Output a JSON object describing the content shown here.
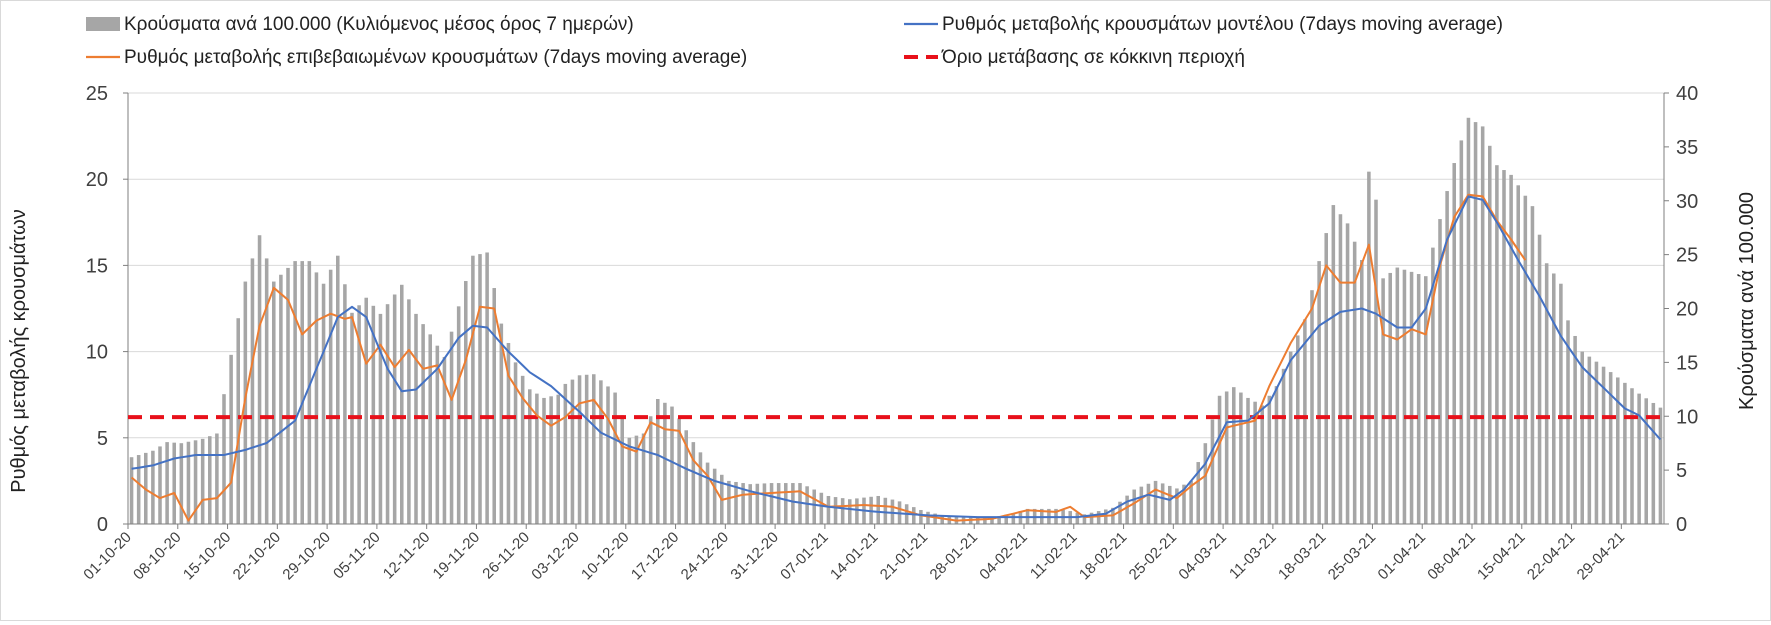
{
  "chart_data": {
    "type": "bar+line",
    "title": "",
    "legend": [
      {
        "key": "bars",
        "label": "Κρούσματα ανά 100.000 (Κυλιόμενος μέσος όρος 7 ημερών)",
        "color": "#a6a6a6"
      },
      {
        "key": "model",
        "label": "Ρυθμός μεταβολής κρουσμάτων μοντέλου (7days moving average)",
        "color": "#4472c4"
      },
      {
        "key": "confirmed",
        "label": "Ρυθμός μεταβολής επιβεβαιωμένων κρουσμάτων (7days moving average)",
        "color": "#ed7d31"
      },
      {
        "key": "threshold",
        "label": "Όριο μετάβασης σε κόκκινη περιοχή",
        "color": "#e8101a"
      }
    ],
    "ylabel_left": "Ρυθμός μεταβολής κρουσμάτων",
    "ylabel_right": "Κρούσματα ανά 100.000",
    "ylim_left": [
      0,
      25
    ],
    "yticks_left": [
      "0",
      "5",
      "10",
      "15",
      "20",
      "25"
    ],
    "ylim_right": [
      0,
      40
    ],
    "yticks_right": [
      "0",
      "5",
      "10",
      "15",
      "20",
      "25",
      "30",
      "35",
      "40"
    ],
    "x_start": "2020-10-01",
    "x_end": "2021-05-04",
    "xticks": [
      "01-10-20",
      "08-10-20",
      "15-10-20",
      "22-10-20",
      "29-10-20",
      "05-11-20",
      "12-11-20",
      "19-11-20",
      "26-11-20",
      "03-12-20",
      "10-12-20",
      "17-12-20",
      "24-12-20",
      "31-12-20",
      "07-01-21",
      "14-01-21",
      "21-01-21",
      "28-01-21",
      "04-02-21",
      "11-02-21",
      "18-02-21",
      "25-02-21",
      "04-03-21",
      "11-03-21",
      "18-03-21",
      "25-03-21",
      "01-04-21",
      "08-04-21",
      "15-04-21",
      "22-04-21",
      "29-04-21"
    ],
    "threshold_left": 6.2,
    "bars_anchors_right": [
      [
        "2020-10-01",
        6.2
      ],
      [
        "2020-10-04",
        6.8
      ],
      [
        "2020-10-06",
        7.6
      ],
      [
        "2020-10-08",
        7.5
      ],
      [
        "2020-10-11",
        7.9
      ],
      [
        "2020-10-13",
        8.4
      ],
      [
        "2020-10-15",
        15.7
      ],
      [
        "2020-10-17",
        22.5
      ],
      [
        "2020-10-19",
        26.8
      ],
      [
        "2020-10-21",
        22.5
      ],
      [
        "2020-10-24",
        24.4
      ],
      [
        "2020-10-26",
        24.4
      ],
      [
        "2020-10-28",
        22.3
      ],
      [
        "2020-10-30",
        24.9
      ],
      [
        "2020-11-01",
        19.6
      ],
      [
        "2020-11-03",
        21.0
      ],
      [
        "2020-11-05",
        19.5
      ],
      [
        "2020-11-08",
        22.2
      ],
      [
        "2020-11-10",
        19.5
      ],
      [
        "2020-11-12",
        17.6
      ],
      [
        "2020-11-14",
        15.5
      ],
      [
        "2020-11-16",
        20.2
      ],
      [
        "2020-11-18",
        24.9
      ],
      [
        "2020-11-20",
        25.2
      ],
      [
        "2020-11-22",
        18.6
      ],
      [
        "2020-11-24",
        15.0
      ],
      [
        "2020-11-26",
        12.5
      ],
      [
        "2020-11-28",
        11.7
      ],
      [
        "2020-11-30",
        12.0
      ],
      [
        "2020-12-01",
        13.0
      ],
      [
        "2020-12-03",
        13.8
      ],
      [
        "2020-12-05",
        13.9
      ],
      [
        "2020-12-08",
        12.2
      ],
      [
        "2020-12-10",
        8.0
      ],
      [
        "2020-12-12",
        8.4
      ],
      [
        "2020-12-14",
        11.6
      ],
      [
        "2020-12-16",
        10.9
      ],
      [
        "2020-12-19",
        7.6
      ],
      [
        "2020-12-21",
        5.7
      ],
      [
        "2020-12-24",
        4.0
      ],
      [
        "2020-12-27",
        3.7
      ],
      [
        "2020-12-30",
        3.8
      ],
      [
        "2021-01-03",
        3.8
      ],
      [
        "2021-01-07",
        2.6
      ],
      [
        "2021-01-10",
        2.3
      ],
      [
        "2021-01-14",
        2.6
      ],
      [
        "2021-01-17",
        2.1
      ],
      [
        "2021-01-20",
        1.3
      ],
      [
        "2021-01-23",
        0.8
      ],
      [
        "2021-01-27",
        0.6
      ],
      [
        "2021-01-30",
        0.6
      ],
      [
        "2021-02-02",
        1.0
      ],
      [
        "2021-02-04",
        1.4
      ],
      [
        "2021-02-08",
        1.4
      ],
      [
        "2021-02-10",
        1.2
      ],
      [
        "2021-02-12",
        0.9
      ],
      [
        "2021-02-16",
        1.5
      ],
      [
        "2021-02-19",
        3.2
      ],
      [
        "2021-02-22",
        4.0
      ],
      [
        "2021-02-25",
        3.3
      ],
      [
        "2021-02-27",
        4.0
      ],
      [
        "2021-03-01",
        7.5
      ],
      [
        "2021-03-03",
        11.9
      ],
      [
        "2021-03-05",
        12.7
      ],
      [
        "2021-03-07",
        11.7
      ],
      [
        "2021-03-09",
        11.0
      ],
      [
        "2021-03-11",
        12.8
      ],
      [
        "2021-03-13",
        16.0
      ],
      [
        "2021-03-15",
        19.0
      ],
      [
        "2021-03-17",
        24.4
      ],
      [
        "2021-03-19",
        29.6
      ],
      [
        "2021-03-21",
        27.9
      ],
      [
        "2021-03-23",
        24.5
      ],
      [
        "2021-03-24",
        32.7
      ],
      [
        "2021-03-25",
        30.1
      ],
      [
        "2021-03-26",
        22.8
      ],
      [
        "2021-03-28",
        23.8
      ],
      [
        "2021-03-30",
        23.4
      ],
      [
        "2021-04-01",
        23.0
      ],
      [
        "2021-04-03",
        28.3
      ],
      [
        "2021-04-05",
        33.5
      ],
      [
        "2021-04-07",
        37.7
      ],
      [
        "2021-04-09",
        36.9
      ],
      [
        "2021-04-11",
        33.3
      ],
      [
        "2021-04-13",
        32.4
      ],
      [
        "2021-04-16",
        29.5
      ],
      [
        "2021-04-18",
        24.2
      ],
      [
        "2021-04-20",
        22.3
      ],
      [
        "2021-04-21",
        18.9
      ],
      [
        "2021-04-23",
        16.0
      ],
      [
        "2021-04-26",
        14.6
      ],
      [
        "2021-04-29",
        13.1
      ],
      [
        "2021-05-01",
        12.1
      ],
      [
        "2021-05-04",
        10.8
      ]
    ],
    "model_anchors_left": [
      [
        "2020-10-01",
        3.2
      ],
      [
        "2020-10-04",
        3.4
      ],
      [
        "2020-10-07",
        3.8
      ],
      [
        "2020-10-10",
        4.0
      ],
      [
        "2020-10-14",
        4.0
      ],
      [
        "2020-10-17",
        4.3
      ],
      [
        "2020-10-20",
        4.7
      ],
      [
        "2020-10-24",
        6.0
      ],
      [
        "2020-10-27",
        9.0
      ],
      [
        "2020-10-30",
        12.0
      ],
      [
        "2020-11-01",
        12.6
      ],
      [
        "2020-11-03",
        12.0
      ],
      [
        "2020-11-06",
        9.0
      ],
      [
        "2020-11-08",
        7.7
      ],
      [
        "2020-11-10",
        7.8
      ],
      [
        "2020-11-13",
        9.0
      ],
      [
        "2020-11-16",
        10.8
      ],
      [
        "2020-11-18",
        11.5
      ],
      [
        "2020-11-20",
        11.4
      ],
      [
        "2020-11-23",
        10.0
      ],
      [
        "2020-11-26",
        8.8
      ],
      [
        "2020-11-29",
        8.0
      ],
      [
        "2020-12-03",
        6.5
      ],
      [
        "2020-12-06",
        5.3
      ],
      [
        "2020-12-10",
        4.5
      ],
      [
        "2020-12-14",
        4.0
      ],
      [
        "2020-12-18",
        3.2
      ],
      [
        "2020-12-22",
        2.5
      ],
      [
        "2020-12-27",
        1.9
      ],
      [
        "2021-01-02",
        1.3
      ],
      [
        "2021-01-07",
        1.0
      ],
      [
        "2021-01-14",
        0.7
      ],
      [
        "2021-01-21",
        0.5
      ],
      [
        "2021-01-28",
        0.4
      ],
      [
        "2021-02-04",
        0.4
      ],
      [
        "2021-02-11",
        0.4
      ],
      [
        "2021-02-15",
        0.6
      ],
      [
        "2021-02-18",
        1.3
      ],
      [
        "2021-02-21",
        1.7
      ],
      [
        "2021-02-24",
        1.4
      ],
      [
        "2021-02-26",
        2.0
      ],
      [
        "2021-03-01",
        3.5
      ],
      [
        "2021-03-04",
        5.9
      ],
      [
        "2021-03-07",
        6.0
      ],
      [
        "2021-03-10",
        7.0
      ],
      [
        "2021-03-13",
        9.5
      ],
      [
        "2021-03-17",
        11.5
      ],
      [
        "2021-03-20",
        12.3
      ],
      [
        "2021-03-23",
        12.5
      ],
      [
        "2021-03-25",
        12.2
      ],
      [
        "2021-03-28",
        11.4
      ],
      [
        "2021-03-30",
        11.4
      ],
      [
        "2021-04-01",
        12.5
      ],
      [
        "2021-04-04",
        16.5
      ],
      [
        "2021-04-07",
        19.0
      ],
      [
        "2021-04-09",
        18.8
      ],
      [
        "2021-04-11",
        17.5
      ],
      [
        "2021-04-14",
        15.3
      ],
      [
        "2021-04-17",
        13.2
      ],
      [
        "2021-04-20",
        10.9
      ],
      [
        "2021-04-23",
        9.1
      ],
      [
        "2021-04-26",
        7.9
      ],
      [
        "2021-04-29",
        6.7
      ],
      [
        "2021-05-01",
        6.3
      ],
      [
        "2021-05-04",
        4.9
      ]
    ],
    "confirmed_anchors_left": [
      [
        "2020-10-01",
        2.7
      ],
      [
        "2020-10-03",
        2.0
      ],
      [
        "2020-10-05",
        1.5
      ],
      [
        "2020-10-07",
        1.8
      ],
      [
        "2020-10-09",
        0.2
      ],
      [
        "2020-10-11",
        1.4
      ],
      [
        "2020-10-13",
        1.5
      ],
      [
        "2020-10-15",
        2.4
      ],
      [
        "2020-10-17",
        7.3
      ],
      [
        "2020-10-19",
        11.5
      ],
      [
        "2020-10-21",
        13.7
      ],
      [
        "2020-10-23",
        13.0
      ],
      [
        "2020-10-25",
        11.0
      ],
      [
        "2020-10-27",
        11.8
      ],
      [
        "2020-10-29",
        12.2
      ],
      [
        "2020-10-31",
        11.9
      ],
      [
        "2020-11-01",
        12.0
      ],
      [
        "2020-11-03",
        9.3
      ],
      [
        "2020-11-05",
        10.4
      ],
      [
        "2020-11-07",
        9.1
      ],
      [
        "2020-11-09",
        10.1
      ],
      [
        "2020-11-11",
        9.0
      ],
      [
        "2020-11-13",
        9.2
      ],
      [
        "2020-11-15",
        7.2
      ],
      [
        "2020-11-17",
        9.5
      ],
      [
        "2020-11-19",
        12.6
      ],
      [
        "2020-11-21",
        12.5
      ],
      [
        "2020-11-23",
        8.6
      ],
      [
        "2020-11-25",
        7.3
      ],
      [
        "2020-11-27",
        6.3
      ],
      [
        "2020-11-29",
        5.7
      ],
      [
        "2020-12-01",
        6.2
      ],
      [
        "2020-12-03",
        7.0
      ],
      [
        "2020-12-05",
        7.2
      ],
      [
        "2020-12-07",
        6.1
      ],
      [
        "2020-12-09",
        4.5
      ],
      [
        "2020-12-11",
        4.2
      ],
      [
        "2020-12-13",
        5.9
      ],
      [
        "2020-12-15",
        5.5
      ],
      [
        "2020-12-17",
        5.4
      ],
      [
        "2020-12-19",
        3.7
      ],
      [
        "2020-12-21",
        2.8
      ],
      [
        "2020-12-23",
        1.4
      ],
      [
        "2020-12-26",
        1.7
      ],
      [
        "2020-12-30",
        1.8
      ],
      [
        "2021-01-03",
        1.9
      ],
      [
        "2021-01-07",
        1.0
      ],
      [
        "2021-01-12",
        1.1
      ],
      [
        "2021-01-16",
        1.0
      ],
      [
        "2021-01-20",
        0.5
      ],
      [
        "2021-01-25",
        0.2
      ],
      [
        "2021-01-30",
        0.3
      ],
      [
        "2021-02-04",
        0.8
      ],
      [
        "2021-02-08",
        0.7
      ],
      [
        "2021-02-10",
        1.0
      ],
      [
        "2021-02-12",
        0.4
      ],
      [
        "2021-02-16",
        0.5
      ],
      [
        "2021-02-19",
        1.2
      ],
      [
        "2021-02-22",
        2.0
      ],
      [
        "2021-02-25",
        1.5
      ],
      [
        "2021-02-27",
        2.2
      ],
      [
        "2021-03-01",
        2.8
      ],
      [
        "2021-03-04",
        5.6
      ],
      [
        "2021-03-06",
        5.8
      ],
      [
        "2021-03-08",
        6.0
      ],
      [
        "2021-03-10",
        8.0
      ],
      [
        "2021-03-13",
        10.5
      ],
      [
        "2021-03-16",
        12.5
      ],
      [
        "2021-03-18",
        15.0
      ],
      [
        "2021-03-20",
        14.0
      ],
      [
        "2021-03-22",
        14.0
      ],
      [
        "2021-03-24",
        16.2
      ],
      [
        "2021-03-26",
        11.0
      ],
      [
        "2021-03-28",
        10.7
      ],
      [
        "2021-03-30",
        11.3
      ],
      [
        "2021-04-01",
        11.0
      ],
      [
        "2021-04-03",
        15.0
      ],
      [
        "2021-04-05",
        17.8
      ],
      [
        "2021-04-07",
        19.1
      ],
      [
        "2021-04-09",
        19.0
      ],
      [
        "2021-04-11",
        17.6
      ],
      [
        "2021-04-13",
        16.5
      ],
      [
        "2021-04-15",
        15.3
      ]
    ]
  }
}
